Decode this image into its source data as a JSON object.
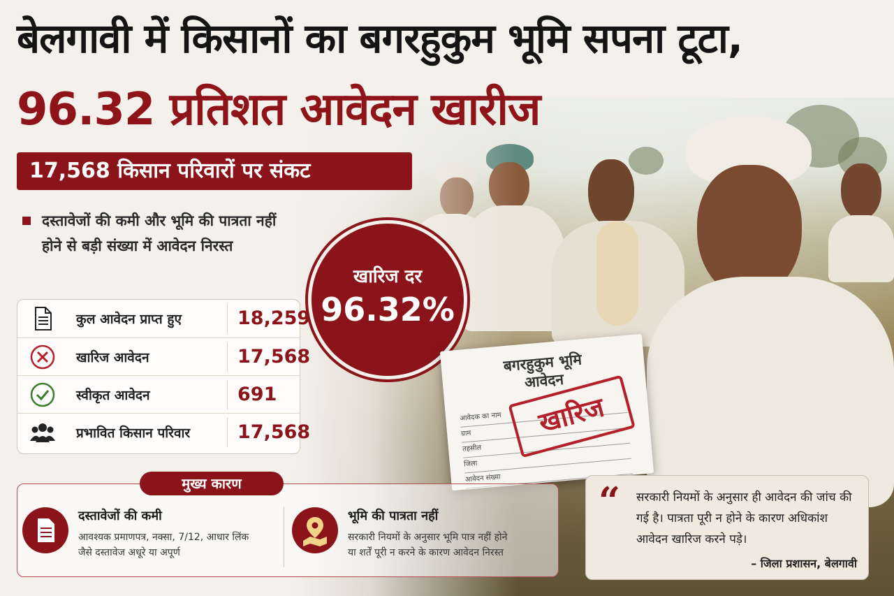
{
  "headline": {
    "line1": "बेलगावी में किसानों का बगरहुकुम भूमि सपना टूटा,",
    "line2": "96.32 प्रतिशत आवेदन खारीज"
  },
  "banner": {
    "text": "17,568 किसान परिवारों पर संकट"
  },
  "bullet": {
    "text": "दस्तावेजों की कमी और भूमि की पात्रता नहीं होने से बड़ी संख्या में आवेदन निरस्त"
  },
  "stats": [
    {
      "icon": "document-icon",
      "label": "कुल आवेदन प्राप्त हुए",
      "value": "18,259"
    },
    {
      "icon": "reject-x-icon",
      "label": "खारिज आवेदन",
      "value": "17,568"
    },
    {
      "icon": "approved-check-icon",
      "label": "स्वीकृत आवेदन",
      "value": "691"
    },
    {
      "icon": "farmers-group-icon",
      "label": "प्रभावित किसान परिवार",
      "value": "17,568"
    }
  ],
  "rate_badge": {
    "label": "खारिज दर",
    "value": "96.32%"
  },
  "document": {
    "title_line1": "बगरहुकुम भूमि",
    "title_line2": "आवेदन",
    "fields": [
      "आवेदक का नाम",
      "ग्राम",
      "तहसील",
      "जिला",
      "आवेदन संख्या"
    ],
    "stamp": "खारिज"
  },
  "reasons": {
    "tag": "मुख्य कारण",
    "items": [
      {
        "icon": "document-icon",
        "title": "दस्तावेजों की कमी",
        "desc_line1": "आवश्यक प्रमाणपत्र, नक्सा, 7/12, आधार लिंक",
        "desc_line2": "जैसे दस्तावेज अधूरे या अपूर्ण"
      },
      {
        "icon": "map-pin-icon",
        "title": "भूमि की पात्रता नहीं",
        "desc_line1": "सरकारी नियमों के अनुसार भूमि पात्र नहीं होने",
        "desc_line2": "या शर्तें पूरी न करने के कारण आवेदन निरस्त"
      }
    ]
  },
  "quote": {
    "text": "सरकारी नियमों के अनुसार ही आवेदन की जांच की गई है। पात्रता पूरी न होने के कारण अधिकांश आवेदन खारिज करने पड़े।",
    "source": "– जिला प्रशासन, बेलगावी"
  },
  "colors": {
    "accent": "#8a1419",
    "background": "#f4f1ec"
  }
}
